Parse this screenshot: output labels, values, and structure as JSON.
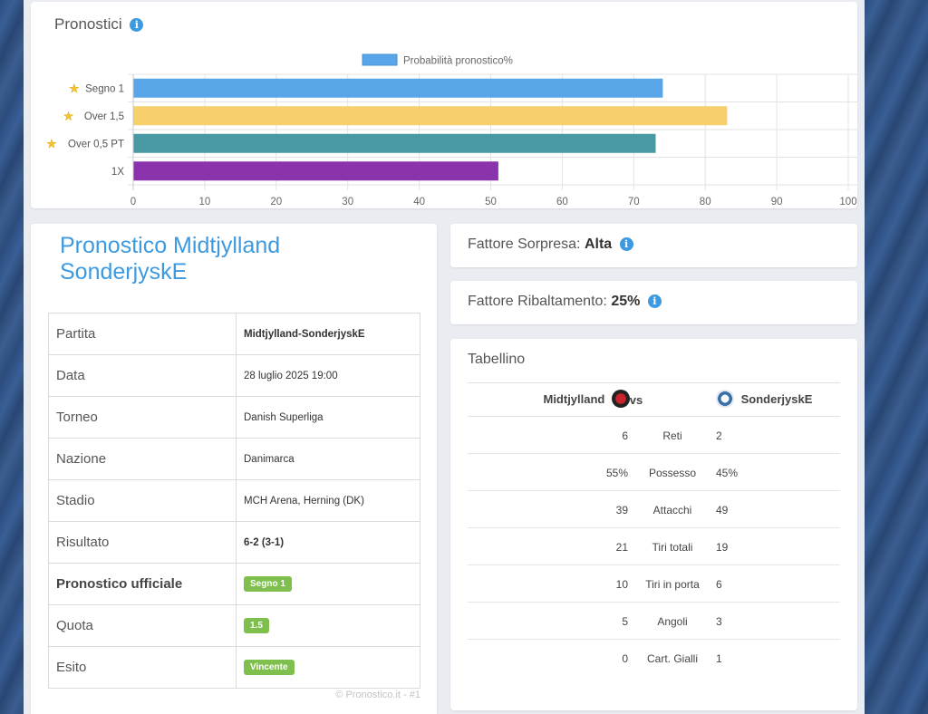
{
  "chart": {
    "title": "Pronostici",
    "info_icon": "info-icon"
  },
  "chart_data": {
    "type": "bar",
    "orientation": "horizontal",
    "categories": [
      "Segno 1",
      "Over 1,5",
      "Over 0,5 PT",
      "1X"
    ],
    "starred": [
      true,
      true,
      true,
      false
    ],
    "series": [
      {
        "name": "Probabilità pronostico%",
        "values": [
          74,
          83,
          73,
          51
        ],
        "colors": [
          "#58a5e8",
          "#f7cf6b",
          "#4899a4",
          "#8a33ad"
        ]
      }
    ],
    "xlim": [
      0,
      100
    ],
    "xticks": [
      0,
      10,
      20,
      30,
      40,
      50,
      60,
      70,
      80,
      90,
      100
    ],
    "grid": true,
    "legend": "top-center",
    "legend_color": "#58a5e8"
  },
  "details": {
    "title": "Pronostico Midtjylland SonderjyskE",
    "rows": [
      {
        "label": "Partita",
        "value": "Midtjylland-SonderjyskE"
      },
      {
        "label": "Data",
        "value": "28 luglio 2025 19:00"
      },
      {
        "label": "Torneo",
        "value": "Danish Superliga"
      },
      {
        "label": "Nazione",
        "value": "Danimarca"
      },
      {
        "label": "Stadio",
        "value": "MCH Arena, Herning (DK)"
      },
      {
        "label": "Risultato",
        "value": "6-2 (3-1)"
      },
      {
        "label": "Pronostico ufficiale",
        "value": "Segno 1"
      },
      {
        "label": "Quota",
        "value": "1.5"
      },
      {
        "label": "Esito",
        "value": "Vincente"
      }
    ],
    "copyright": "© Pronostico.it - #1"
  },
  "sorpresa": {
    "label": "Fattore Sorpresa:",
    "value": "Alta"
  },
  "ribaltamento": {
    "label": "Fattore Ribaltamento:",
    "value": "25%"
  },
  "tabellino": {
    "title": "Tabellino",
    "home": "Midtjylland",
    "vs": "vs",
    "away": "SonderjyskE",
    "stats": [
      {
        "home": "6",
        "label": "Reti",
        "away": "2"
      },
      {
        "home": "55%",
        "label": "Possesso",
        "away": "45%"
      },
      {
        "home": "39",
        "label": "Attacchi",
        "away": "49"
      },
      {
        "home": "21",
        "label": "Tiri totali",
        "away": "19"
      },
      {
        "home": "10",
        "label": "Tiri in porta",
        "away": "6"
      },
      {
        "home": "5",
        "label": "Angoli",
        "away": "3"
      },
      {
        "home": "0",
        "label": "Cart. Gialli",
        "away": "1"
      }
    ]
  },
  "colors": {
    "accent": "#3d9ae0",
    "badge": "#7fbf4d",
    "background": "#e9edf2"
  }
}
